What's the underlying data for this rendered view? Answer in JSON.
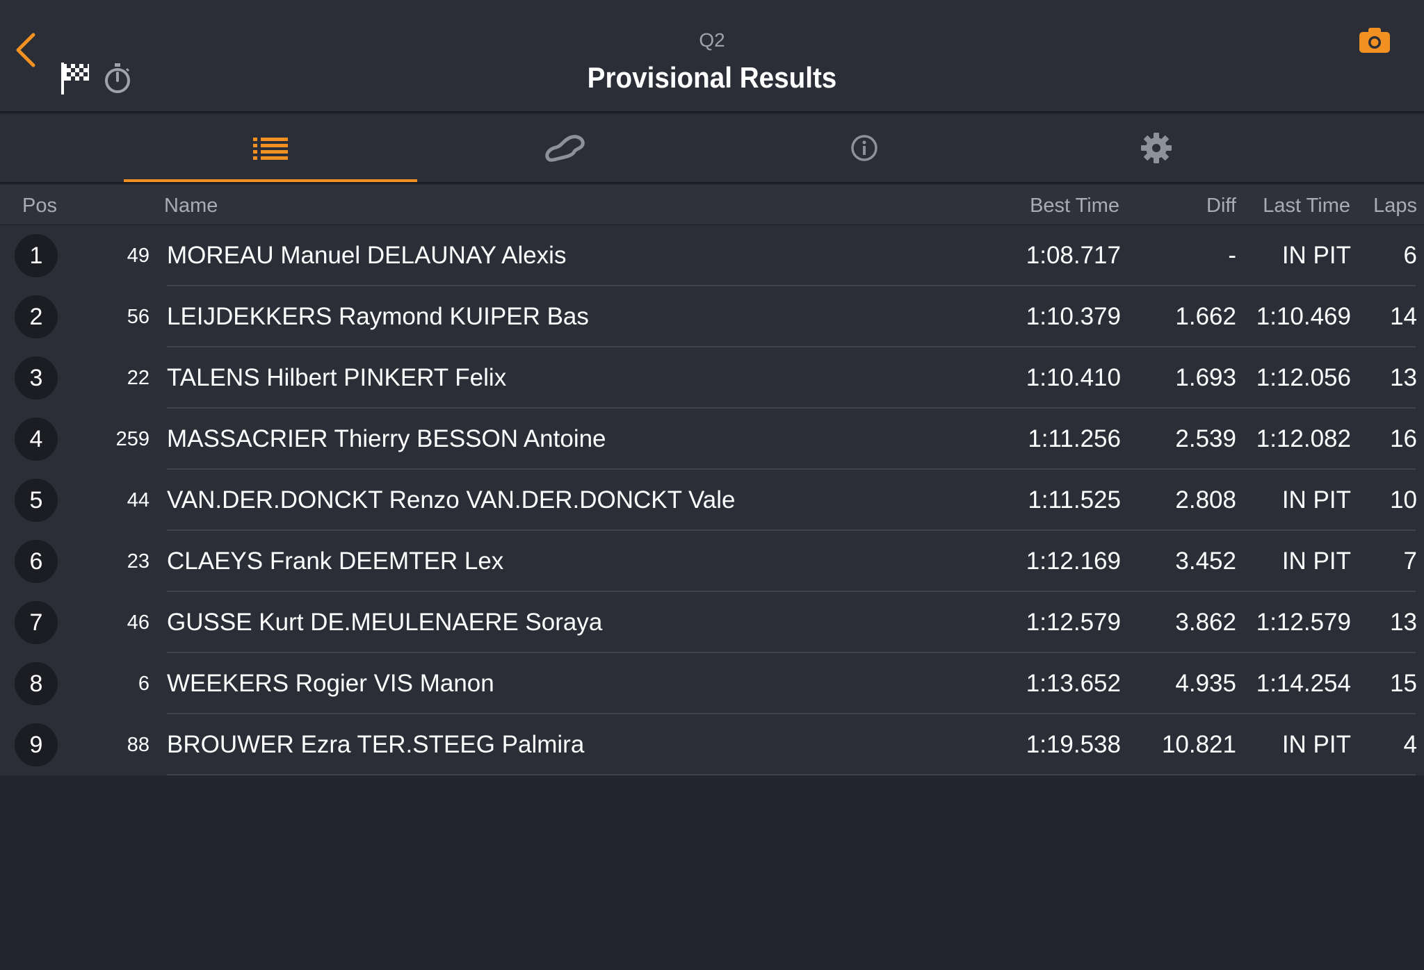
{
  "header": {
    "session": "Q2",
    "title": "Provisional Results"
  },
  "icons": {
    "back": "chevron-left-icon",
    "flag": "checkered-flag-icon",
    "stopwatch": "stopwatch-icon",
    "camera": "camera-icon"
  },
  "colors": {
    "accent": "#f29121",
    "header_bg": "#2b2e37",
    "page_bg": "#22252d",
    "badge_bg": "#1b1d22"
  },
  "tabs": [
    {
      "name": "results-list",
      "icon": "list-icon",
      "active": true
    },
    {
      "name": "track",
      "icon": "track-map-icon",
      "active": false
    },
    {
      "name": "info",
      "icon": "info-icon",
      "active": false
    },
    {
      "name": "settings",
      "icon": "gear-icon",
      "active": false
    }
  ],
  "columns": {
    "pos": "Pos",
    "name": "Name",
    "best": "Best Time",
    "diff": "Diff",
    "last": "Last Time",
    "laps": "Laps"
  },
  "results": [
    {
      "pos": "1",
      "num": "49",
      "name": "MOREAU Manuel DELAUNAY Alexis",
      "best": "1:08.717",
      "diff": "-",
      "last": "IN PIT",
      "laps": "6"
    },
    {
      "pos": "2",
      "num": "56",
      "name": "LEIJDEKKERS Raymond KUIPER Bas",
      "best": "1:10.379",
      "diff": "1.662",
      "last": "1:10.469",
      "laps": "14"
    },
    {
      "pos": "3",
      "num": "22",
      "name": "TALENS Hilbert PINKERT Felix",
      "best": "1:10.410",
      "diff": "1.693",
      "last": "1:12.056",
      "laps": "13"
    },
    {
      "pos": "4",
      "num": "259",
      "name": "MASSACRIER Thierry BESSON Antoine",
      "best": "1:11.256",
      "diff": "2.539",
      "last": "1:12.082",
      "laps": "16"
    },
    {
      "pos": "5",
      "num": "44",
      "name": "VAN.DER.DONCKT Renzo VAN.DER.DONCKT Vale",
      "best": "1:11.525",
      "diff": "2.808",
      "last": "IN PIT",
      "laps": "10"
    },
    {
      "pos": "6",
      "num": "23",
      "name": "CLAEYS Frank DEEMTER Lex",
      "best": "1:12.169",
      "diff": "3.452",
      "last": "IN PIT",
      "laps": "7"
    },
    {
      "pos": "7",
      "num": "46",
      "name": "GUSSE Kurt DE.MEULENAERE Soraya",
      "best": "1:12.579",
      "diff": "3.862",
      "last": "1:12.579",
      "laps": "13"
    },
    {
      "pos": "8",
      "num": "6",
      "name": "WEEKERS Rogier VIS Manon",
      "best": "1:13.652",
      "diff": "4.935",
      "last": "1:14.254",
      "laps": "15"
    },
    {
      "pos": "9",
      "num": "88",
      "name": "BROUWER Ezra TER.STEEG Palmira",
      "best": "1:19.538",
      "diff": "10.821",
      "last": "IN PIT",
      "laps": "4"
    }
  ]
}
